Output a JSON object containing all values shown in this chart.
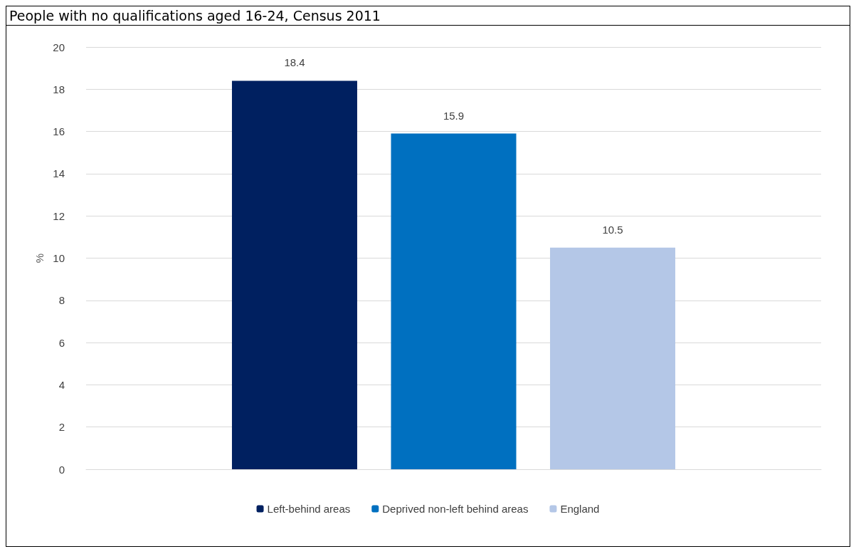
{
  "chart_data": {
    "type": "bar",
    "title": "People with no qualifications aged 16-24, Census 2011",
    "ylabel": "%",
    "categories": [
      null
    ],
    "series": [
      {
        "name": "Left-behind areas",
        "color": "#002060",
        "values": [
          18.4
        ]
      },
      {
        "name": "Deprived non-left behind areas",
        "color": "#0070c0",
        "values": [
          15.9
        ]
      },
      {
        "name": "England",
        "color": "#b4c7e7",
        "values": [
          10.5
        ]
      }
    ],
    "ylim": [
      0,
      20
    ],
    "yticks": [
      0,
      2,
      4,
      6,
      8,
      10,
      12,
      14,
      16,
      18,
      20
    ],
    "grid": "y",
    "legend": "bottom",
    "data_labels": true
  }
}
